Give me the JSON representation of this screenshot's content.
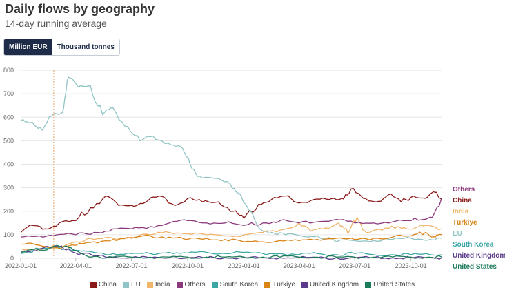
{
  "header": {
    "title": "Daily flows by geography",
    "subtitle": "14-day running average"
  },
  "toggle": {
    "options": [
      {
        "label": "Million EUR",
        "active": true
      },
      {
        "label": "Thousand tonnes",
        "active": false
      }
    ]
  },
  "chart_data": {
    "type": "line",
    "ylim": [
      0,
      800
    ],
    "yticks": [
      0,
      100,
      200,
      300,
      400,
      500,
      600,
      700,
      800
    ],
    "xlim": [
      "2022-01-01",
      "2023-11-20"
    ],
    "xticks": [
      "2022-01-01",
      "2022-04-01",
      "2022-07-01",
      "2022-10-01",
      "2023-01-01",
      "2023-04-01",
      "2023-07-01",
      "2023-10-01"
    ],
    "grid": true,
    "vline_date": "2022-02-24",
    "legend": "bottom",
    "series": [
      {
        "name": "China",
        "color": "#8b1a1a",
        "end_label": "China",
        "points": [
          [
            "2022-01-01",
            110
          ],
          [
            "2022-01-20",
            140
          ],
          [
            "2022-02-10",
            125
          ],
          [
            "2022-03-05",
            150
          ],
          [
            "2022-04-01",
            160
          ],
          [
            "2022-04-25",
            215
          ],
          [
            "2022-05-20",
            265
          ],
          [
            "2022-06-10",
            225
          ],
          [
            "2022-07-01",
            225
          ],
          [
            "2022-07-25",
            240
          ],
          [
            "2022-08-15",
            265
          ],
          [
            "2022-09-10",
            225
          ],
          [
            "2022-10-01",
            255
          ],
          [
            "2022-10-25",
            240
          ],
          [
            "2022-11-20",
            240
          ],
          [
            "2022-12-15",
            200
          ],
          [
            "2023-01-01",
            170
          ],
          [
            "2023-01-25",
            230
          ],
          [
            "2023-02-15",
            250
          ],
          [
            "2023-03-10",
            265
          ],
          [
            "2023-04-01",
            235
          ],
          [
            "2023-04-25",
            250
          ],
          [
            "2023-05-20",
            250
          ],
          [
            "2023-06-10",
            255
          ],
          [
            "2023-06-25",
            295
          ],
          [
            "2023-07-15",
            255
          ],
          [
            "2023-08-05",
            240
          ],
          [
            "2023-08-25",
            270
          ],
          [
            "2023-09-15",
            240
          ],
          [
            "2023-10-05",
            265
          ],
          [
            "2023-10-25",
            255
          ],
          [
            "2023-11-10",
            280
          ],
          [
            "2023-11-20",
            250
          ]
        ]
      },
      {
        "name": "EU",
        "color": "#8fc3c4",
        "end_label": "EU",
        "points": [
          [
            "2022-01-01",
            585
          ],
          [
            "2022-01-20",
            580
          ],
          [
            "2022-02-05",
            545
          ],
          [
            "2022-02-24",
            615
          ],
          [
            "2022-03-10",
            620
          ],
          [
            "2022-03-20",
            770
          ],
          [
            "2022-04-05",
            730
          ],
          [
            "2022-04-25",
            735
          ],
          [
            "2022-05-15",
            610
          ],
          [
            "2022-06-01",
            640
          ],
          [
            "2022-06-25",
            560
          ],
          [
            "2022-07-15",
            500
          ],
          [
            "2022-08-05",
            520
          ],
          [
            "2022-08-30",
            490
          ],
          [
            "2022-09-20",
            475
          ],
          [
            "2022-10-05",
            400
          ],
          [
            "2022-10-20",
            350
          ],
          [
            "2022-11-15",
            340
          ],
          [
            "2022-12-10",
            315
          ],
          [
            "2022-12-25",
            275
          ],
          [
            "2023-01-10",
            200
          ],
          [
            "2023-01-25",
            130
          ],
          [
            "2023-02-15",
            110
          ],
          [
            "2023-03-10",
            100
          ],
          [
            "2023-04-05",
            95
          ],
          [
            "2023-05-01",
            95
          ],
          [
            "2023-06-01",
            70
          ],
          [
            "2023-07-01",
            75
          ],
          [
            "2023-08-01",
            75
          ],
          [
            "2023-09-01",
            80
          ],
          [
            "2023-10-01",
            85
          ],
          [
            "2023-11-01",
            80
          ],
          [
            "2023-11-20",
            85
          ]
        ]
      },
      {
        "name": "India",
        "color": "#f0b46a",
        "end_label": "India",
        "points": [
          [
            "2022-01-01",
            40
          ],
          [
            "2022-02-01",
            35
          ],
          [
            "2022-03-01",
            50
          ],
          [
            "2022-04-01",
            70
          ],
          [
            "2022-05-01",
            80
          ],
          [
            "2022-06-01",
            85
          ],
          [
            "2022-07-01",
            90
          ],
          [
            "2022-08-01",
            100
          ],
          [
            "2022-09-01",
            110
          ],
          [
            "2022-10-01",
            105
          ],
          [
            "2022-11-01",
            100
          ],
          [
            "2022-12-01",
            95
          ],
          [
            "2023-01-01",
            100
          ],
          [
            "2023-02-01",
            110
          ],
          [
            "2023-03-01",
            120
          ],
          [
            "2023-04-01",
            150
          ],
          [
            "2023-04-20",
            115
          ],
          [
            "2023-05-15",
            130
          ],
          [
            "2023-06-05",
            150
          ],
          [
            "2023-06-20",
            105
          ],
          [
            "2023-07-05",
            175
          ],
          [
            "2023-07-20",
            110
          ],
          [
            "2023-08-15",
            120
          ],
          [
            "2023-09-10",
            135
          ],
          [
            "2023-10-05",
            125
          ],
          [
            "2023-10-25",
            140
          ],
          [
            "2023-11-20",
            125
          ]
        ]
      },
      {
        "name": "Others",
        "color": "#8c3a7e",
        "end_label": "Others",
        "points": [
          [
            "2022-01-01",
            90
          ],
          [
            "2022-02-01",
            95
          ],
          [
            "2022-03-01",
            100
          ],
          [
            "2022-04-01",
            100
          ],
          [
            "2022-05-01",
            110
          ],
          [
            "2022-06-01",
            125
          ],
          [
            "2022-07-01",
            125
          ],
          [
            "2022-08-01",
            135
          ],
          [
            "2022-09-01",
            150
          ],
          [
            "2022-10-01",
            160
          ],
          [
            "2022-11-01",
            150
          ],
          [
            "2022-12-01",
            150
          ],
          [
            "2023-01-01",
            140
          ],
          [
            "2023-02-01",
            150
          ],
          [
            "2023-03-01",
            160
          ],
          [
            "2023-04-01",
            150
          ],
          [
            "2023-05-01",
            155
          ],
          [
            "2023-06-01",
            165
          ],
          [
            "2023-07-01",
            150
          ],
          [
            "2023-08-01",
            150
          ],
          [
            "2023-09-01",
            155
          ],
          [
            "2023-10-01",
            160
          ],
          [
            "2023-11-01",
            175
          ],
          [
            "2023-11-20",
            255
          ]
        ]
      },
      {
        "name": "South Korea",
        "color": "#3aa7a5",
        "end_label": "South Korea",
        "points": [
          [
            "2022-01-01",
            20
          ],
          [
            "2022-02-01",
            40
          ],
          [
            "2022-03-01",
            45
          ],
          [
            "2022-03-20",
            40
          ],
          [
            "2022-04-10",
            30
          ],
          [
            "2022-05-01",
            25
          ],
          [
            "2022-06-01",
            20
          ],
          [
            "2022-07-01",
            20
          ],
          [
            "2022-08-01",
            20
          ],
          [
            "2022-09-01",
            25
          ],
          [
            "2022-10-01",
            22
          ],
          [
            "2022-11-01",
            25
          ],
          [
            "2022-12-01",
            20
          ],
          [
            "2023-01-01",
            25
          ],
          [
            "2023-02-01",
            20
          ],
          [
            "2023-03-01",
            20
          ],
          [
            "2023-04-01",
            15
          ],
          [
            "2023-05-01",
            20
          ],
          [
            "2023-06-01",
            15
          ],
          [
            "2023-07-01",
            20
          ],
          [
            "2023-08-01",
            15
          ],
          [
            "2023-09-01",
            15
          ],
          [
            "2023-10-01",
            15
          ],
          [
            "2023-11-01",
            15
          ],
          [
            "2023-11-20",
            15
          ]
        ]
      },
      {
        "name": "Türkiye",
        "color": "#d98416",
        "end_label": "Türkiye",
        "points": [
          [
            "2022-01-01",
            60
          ],
          [
            "2022-02-01",
            55
          ],
          [
            "2022-03-01",
            45
          ],
          [
            "2022-04-01",
            55
          ],
          [
            "2022-05-01",
            70
          ],
          [
            "2022-06-01",
            80
          ],
          [
            "2022-07-01",
            85
          ],
          [
            "2022-08-01",
            95
          ],
          [
            "2022-09-01",
            90
          ],
          [
            "2022-10-01",
            80
          ],
          [
            "2022-11-01",
            85
          ],
          [
            "2022-12-01",
            80
          ],
          [
            "2023-01-01",
            70
          ],
          [
            "2023-02-01",
            70
          ],
          [
            "2023-03-01",
            75
          ],
          [
            "2023-04-01",
            75
          ],
          [
            "2023-05-01",
            80
          ],
          [
            "2023-06-01",
            85
          ],
          [
            "2023-07-01",
            80
          ],
          [
            "2023-08-01",
            85
          ],
          [
            "2023-09-01",
            90
          ],
          [
            "2023-10-01",
            95
          ],
          [
            "2023-10-25",
            110
          ],
          [
            "2023-11-10",
            90
          ],
          [
            "2023-11-20",
            100
          ]
        ]
      },
      {
        "name": "United Kingdom",
        "color": "#5b3b8c",
        "end_label": "United Kingdom",
        "points": [
          [
            "2022-01-01",
            30
          ],
          [
            "2022-02-01",
            40
          ],
          [
            "2022-03-01",
            50
          ],
          [
            "2022-03-20",
            40
          ],
          [
            "2022-04-10",
            20
          ],
          [
            "2022-05-01",
            10
          ],
          [
            "2022-06-01",
            5
          ],
          [
            "2022-07-01",
            3
          ],
          [
            "2022-08-01",
            2
          ],
          [
            "2022-09-01",
            2
          ],
          [
            "2022-10-01",
            2
          ],
          [
            "2022-11-01",
            2
          ],
          [
            "2022-12-01",
            2
          ],
          [
            "2023-01-01",
            2
          ],
          [
            "2023-02-01",
            2
          ],
          [
            "2023-03-01",
            2
          ],
          [
            "2023-04-01",
            2
          ],
          [
            "2023-05-01",
            2
          ],
          [
            "2023-06-01",
            2
          ],
          [
            "2023-07-01",
            2
          ],
          [
            "2023-08-01",
            2
          ],
          [
            "2023-09-01",
            2
          ],
          [
            "2023-10-01",
            2
          ],
          [
            "2023-11-01",
            2
          ],
          [
            "2023-11-20",
            2
          ]
        ]
      },
      {
        "name": "United States",
        "color": "#1b7a5a",
        "end_label": "United States",
        "points": [
          [
            "2022-01-01",
            25
          ],
          [
            "2022-02-01",
            35
          ],
          [
            "2022-03-01",
            55
          ],
          [
            "2022-03-20",
            45
          ],
          [
            "2022-04-10",
            20
          ],
          [
            "2022-05-01",
            8
          ],
          [
            "2022-06-01",
            5
          ],
          [
            "2022-07-01",
            5
          ],
          [
            "2022-08-01",
            5
          ],
          [
            "2022-09-01",
            5
          ],
          [
            "2022-10-01",
            5
          ],
          [
            "2022-11-01",
            5
          ],
          [
            "2022-12-01",
            5
          ],
          [
            "2023-01-01",
            5
          ],
          [
            "2023-02-01",
            5
          ],
          [
            "2023-03-01",
            5
          ],
          [
            "2023-04-01",
            5
          ],
          [
            "2023-05-01",
            5
          ],
          [
            "2023-06-01",
            5
          ],
          [
            "2023-07-01",
            5
          ],
          [
            "2023-08-01",
            5
          ],
          [
            "2023-09-01",
            5
          ],
          [
            "2023-10-01",
            5
          ],
          [
            "2023-11-01",
            5
          ],
          [
            "2023-11-20",
            5
          ]
        ]
      }
    ],
    "end_label_order": [
      "Others",
      "China",
      "India",
      "Türkiye",
      "EU",
      "South Korea",
      "United Kingdom",
      "United States"
    ]
  }
}
